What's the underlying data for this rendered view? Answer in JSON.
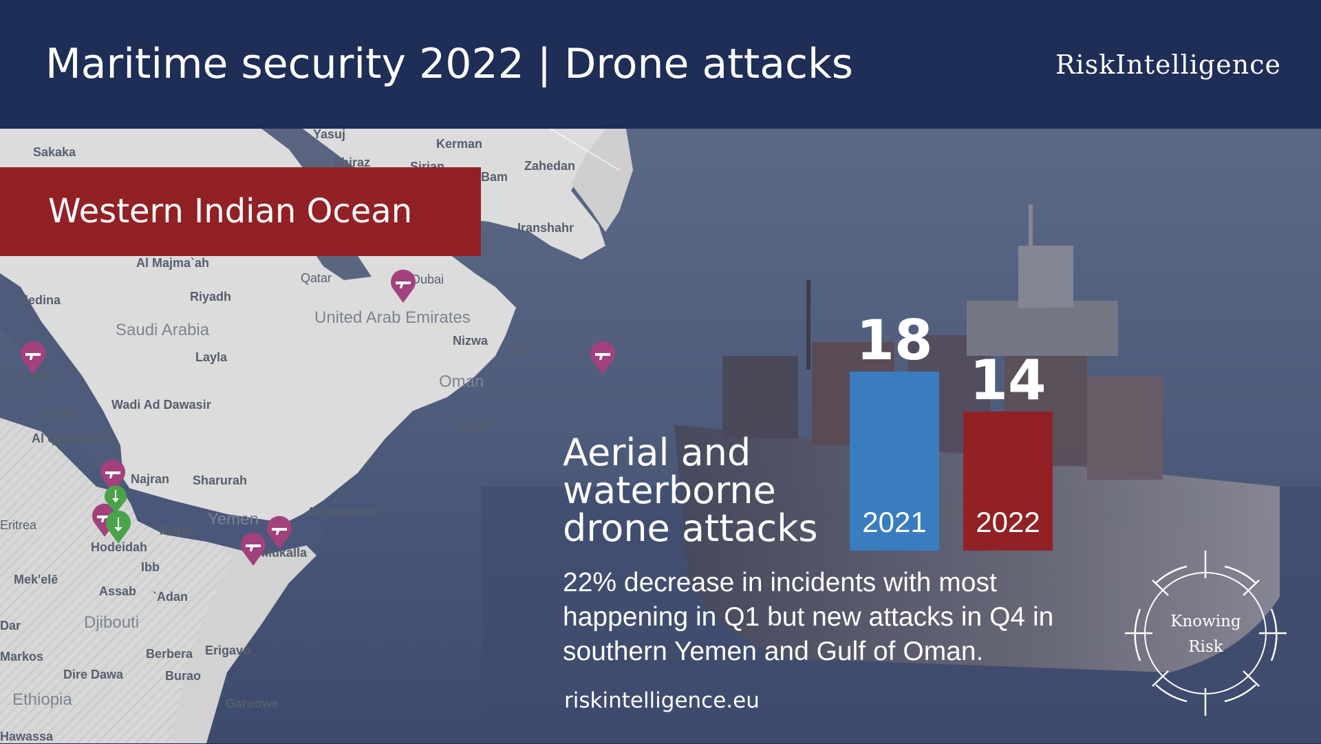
{
  "header": {
    "title": "Maritime security 2022 | Drone attacks",
    "brand": "RiskIntelligence"
  },
  "region_banner": "Western Indian Ocean",
  "map": {
    "cities": [
      "Sakaka",
      "Yasuj",
      "Kerman",
      "Shiraz",
      "Sirjan",
      "Bam",
      "Zahedan",
      "Iranshahr",
      "Al Majma`ah",
      "Qatar",
      "Dubai",
      "Medina",
      "Riyadh",
      "Nizwa",
      "Sur",
      "Layla",
      "Jeddah",
      "Wadi Ad Dawasir",
      "Al Lith",
      "Al Qunfudhah",
      "Duqm",
      "Najran",
      "Sharurah",
      "Al Ghaydah",
      "Eritrea",
      "Marib",
      "Hodeidah",
      "Mukalla",
      "Ibb",
      "Mek'elē",
      "Assab",
      "`Adan",
      "Dar",
      "Markos",
      "Berbera",
      "Erigavo",
      "Dire Dawa",
      "Burao",
      "Garoowe",
      "Hawassa"
    ],
    "countries": [
      "Saudi Arabia",
      "United Arab Emirates",
      "Oman",
      "Yemen",
      "Djibouti",
      "Ethiopia"
    ]
  },
  "headline": "Aerial and waterborne drone attacks",
  "subtext": "22% decrease in incidents with most happening in Q1 but new attacks in Q4 in southern Yemen and Gulf of Oman.",
  "website": "riskintelligence.eu",
  "seal": {
    "line1": "Knowing",
    "line2": "Risk"
  },
  "colors": {
    "navy": "#1f2e57",
    "red": "#922126",
    "blue": "#3a7cc0",
    "marker": "#a2417b",
    "marker_green": "#4aa34a"
  },
  "chart_data": {
    "type": "bar",
    "title": "Aerial and waterborne drone attacks",
    "categories": [
      "2021",
      "2022"
    ],
    "values": [
      18,
      14
    ],
    "colors": [
      "#3a7cc0",
      "#922126"
    ],
    "ylim": [
      0,
      18
    ]
  }
}
